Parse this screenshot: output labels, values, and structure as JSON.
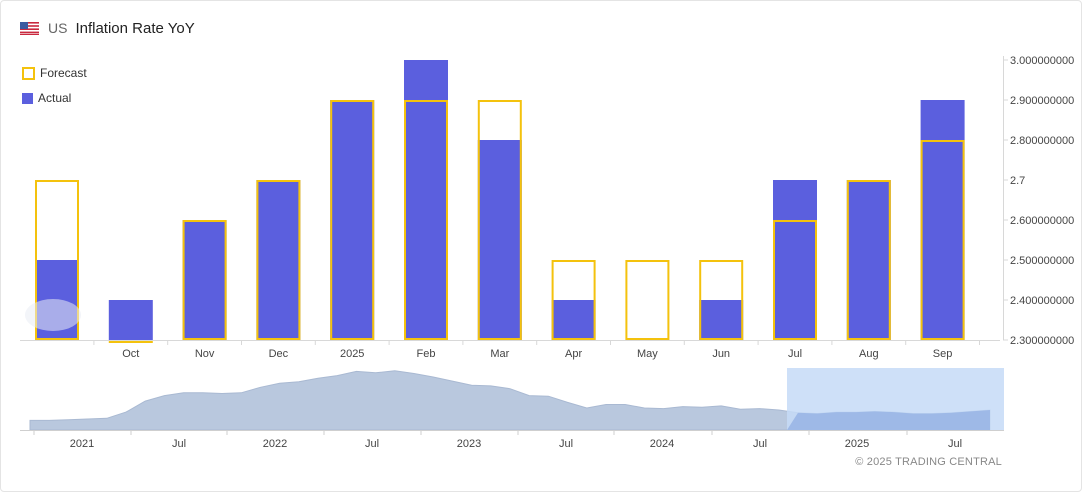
{
  "header": {
    "flag_icon": "us-flag-icon",
    "country": "US",
    "title": "Inflation Rate YoY"
  },
  "legend": {
    "forecast_label": "Forecast",
    "actual_label": "Actual"
  },
  "colors": {
    "actual": "#5b5fde",
    "forecast": "#f4c20d",
    "navigator_fill": "#b9c8de",
    "navigator_selection": "#c5dbf7",
    "navigator_selected_fill": "#9ab6e6"
  },
  "chart_data": {
    "type": "bar",
    "categories": [
      "",
      "Oct",
      "Nov",
      "Dec",
      "2025",
      "Feb",
      "Mar",
      "Apr",
      "May",
      "Jun",
      "Jul",
      "Aug",
      "Sep"
    ],
    "series": [
      {
        "name": "Actual",
        "values": [
          2.5,
          2.4,
          2.6,
          2.7,
          2.9,
          3.0,
          2.8,
          2.4,
          2.3,
          2.4,
          2.7,
          2.7,
          2.9
        ]
      },
      {
        "name": "Forecast",
        "values": [
          2.7,
          2.3,
          2.6,
          2.7,
          2.9,
          2.9,
          2.9,
          2.5,
          2.5,
          2.5,
          2.6,
          2.7,
          2.8
        ]
      }
    ],
    "ylim": [
      2.3,
      3.0
    ],
    "yticks": [
      {
        "value": 3.0,
        "label": "3.000000000"
      },
      {
        "value": 2.9,
        "label": "2.900000000"
      },
      {
        "value": 2.8,
        "label": "2.800000000"
      },
      {
        "value": 2.7,
        "label": "2.7"
      },
      {
        "value": 2.6,
        "label": "2.600000000"
      },
      {
        "value": 2.5,
        "label": "2.500000000"
      },
      {
        "value": 2.4,
        "label": "2.400000000"
      },
      {
        "value": 2.3,
        "label": "2.300000000"
      }
    ],
    "y_axis_side": "right",
    "legend_position": "top-left",
    "grid": false,
    "navigator": {
      "labels": [
        "2021",
        "Jul",
        "2022",
        "Jul",
        "2023",
        "Jul",
        "2024",
        "Jul",
        "2025",
        "Jul"
      ],
      "series": [
        1.4,
        1.4,
        1.5,
        1.6,
        1.7,
        2.6,
        4.2,
        5.0,
        5.4,
        5.4,
        5.3,
        5.4,
        6.2,
        6.8,
        7.0,
        7.5,
        7.9,
        8.5,
        8.3,
        8.6,
        8.2,
        7.7,
        7.1,
        6.5,
        6.4,
        6.0,
        5.0,
        4.9,
        4.0,
        3.2,
        3.7,
        3.7,
        3.2,
        3.1,
        3.4,
        3.3,
        3.5,
        3.0,
        3.1,
        2.9,
        2.5,
        2.4,
        2.6,
        2.6,
        2.7,
        2.6,
        2.4,
        2.4,
        2.5,
        2.7,
        2.9
      ],
      "selected_range": [
        "Sep 2024",
        "Sep 2025"
      ]
    }
  },
  "footer": {
    "copyright": "© 2025 TRADING CENTRAL"
  }
}
